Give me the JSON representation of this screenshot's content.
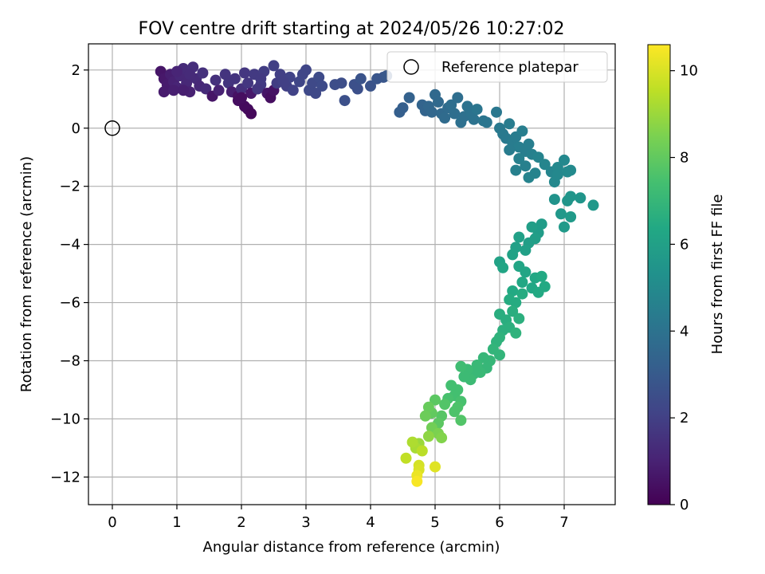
{
  "chart_data": {
    "type": "scatter",
    "title": "FOV centre drift starting at 2024/05/26 10:27:02",
    "xlabel": "Angular distance from reference (arcmin)",
    "ylabel": "Rotation from reference (arcmin)",
    "xlim": [
      -0.37,
      7.79
    ],
    "ylim": [
      -12.95,
      2.9
    ],
    "xticks": [
      0,
      1,
      2,
      3,
      4,
      5,
      6,
      7
    ],
    "yticks": [
      -12,
      -10,
      -8,
      -6,
      -4,
      -2,
      0,
      2
    ],
    "grid": true,
    "legend": {
      "placement": "top-right",
      "entries": [
        "Reference platepar"
      ]
    },
    "reference_point": {
      "x": 0,
      "y": 0
    },
    "colorbar": {
      "label": "Hours from first FF file",
      "colormap": "viridis",
      "range": [
        0,
        10.6
      ],
      "ticks": [
        0,
        2,
        4,
        6,
        8,
        10
      ]
    },
    "series_points": [
      [
        0.75,
        1.95,
        0.6
      ],
      [
        0.8,
        1.7,
        0.7
      ],
      [
        0.85,
        1.5,
        0.8
      ],
      [
        0.9,
        1.85,
        0.9
      ],
      [
        0.8,
        1.25,
        0.8
      ],
      [
        0.95,
        1.6,
        1.0
      ],
      [
        1.0,
        1.4,
        1.1
      ],
      [
        1.05,
        1.8,
        1.2
      ],
      [
        1.1,
        2.05,
        1.3
      ],
      [
        1.15,
        1.55,
        1.2
      ],
      [
        1.2,
        1.25,
        1.0
      ],
      [
        1.25,
        2.1,
        1.4
      ],
      [
        1.3,
        1.7,
        1.3
      ],
      [
        1.35,
        1.45,
        1.2
      ],
      [
        1.0,
        1.95,
        1.1
      ],
      [
        1.1,
        1.3,
        0.9
      ],
      [
        1.2,
        1.85,
        1.3
      ],
      [
        0.95,
        1.3,
        0.9
      ],
      [
        1.4,
        1.9,
        1.5
      ],
      [
        1.45,
        1.35,
        1.3
      ],
      [
        1.55,
        1.1,
        0.6
      ],
      [
        1.6,
        1.65,
        1.5
      ],
      [
        1.65,
        1.3,
        1.0
      ],
      [
        1.75,
        1.85,
        1.6
      ],
      [
        1.8,
        1.55,
        1.6
      ],
      [
        1.85,
        1.25,
        0.9
      ],
      [
        1.9,
        1.7,
        1.6
      ],
      [
        1.95,
        1.1,
        0.5
      ],
      [
        2.0,
        1.35,
        1.5
      ],
      [
        2.05,
        1.9,
        1.7
      ],
      [
        2.1,
        1.55,
        1.7
      ],
      [
        2.15,
        1.2,
        0.7
      ],
      [
        1.95,
        0.95,
        0.4
      ],
      [
        2.05,
        0.75,
        0.3
      ],
      [
        2.1,
        0.65,
        0.3
      ],
      [
        2.15,
        0.5,
        0.2
      ],
      [
        2.0,
        1.05,
        0.4
      ],
      [
        2.2,
        1.85,
        1.8
      ],
      [
        2.3,
        1.5,
        1.8
      ],
      [
        2.35,
        1.95,
        1.9
      ],
      [
        2.4,
        1.2,
        0.6
      ],
      [
        2.45,
        1.05,
        0.4
      ],
      [
        2.5,
        1.3,
        0.5
      ],
      [
        2.55,
        1.55,
        1.9
      ],
      [
        2.6,
        1.85,
        2.0
      ],
      [
        2.5,
        2.15,
        2.0
      ],
      [
        2.7,
        1.45,
        2.0
      ],
      [
        2.75,
        1.75,
        2.1
      ],
      [
        2.8,
        1.3,
        2.1
      ],
      [
        2.9,
        1.6,
        2.2
      ],
      [
        2.95,
        1.85,
        2.2
      ],
      [
        3.05,
        1.3,
        2.3
      ],
      [
        3.1,
        1.55,
        2.3
      ],
      [
        3.2,
        1.75,
        2.4
      ],
      [
        3.25,
        1.45,
        2.4
      ],
      [
        2.3,
        1.7,
        1.8
      ],
      [
        2.25,
        1.35,
        1.7
      ],
      [
        2.65,
        1.6,
        2.0
      ],
      [
        3.0,
        2.0,
        2.2
      ],
      [
        3.15,
        1.2,
        2.3
      ],
      [
        3.45,
        1.5,
        2.5
      ],
      [
        3.55,
        1.55,
        2.5
      ],
      [
        3.6,
        0.95,
        2.6
      ],
      [
        3.75,
        1.5,
        2.6
      ],
      [
        3.8,
        1.35,
        2.6
      ],
      [
        3.85,
        1.7,
        2.7
      ],
      [
        4.0,
        1.45,
        2.7
      ],
      [
        4.1,
        1.7,
        2.8
      ],
      [
        4.2,
        1.75,
        2.8
      ],
      [
        4.25,
        1.8,
        2.9
      ],
      [
        4.45,
        0.55,
        3.2
      ],
      [
        4.5,
        0.7,
        3.2
      ],
      [
        4.6,
        1.05,
        3.3
      ],
      [
        4.8,
        0.8,
        3.4
      ],
      [
        4.85,
        0.6,
        3.4
      ],
      [
        4.9,
        0.75,
        3.5
      ],
      [
        4.95,
        0.55,
        3.5
      ],
      [
        5.0,
        1.15,
        3.6
      ],
      [
        5.05,
        0.9,
        3.6
      ],
      [
        5.1,
        0.5,
        3.6
      ],
      [
        5.15,
        0.35,
        3.7
      ],
      [
        5.2,
        0.7,
        3.7
      ],
      [
        5.25,
        0.8,
        3.8
      ],
      [
        5.3,
        0.5,
        3.8
      ],
      [
        5.35,
        1.05,
        3.8
      ],
      [
        5.4,
        0.2,
        3.9
      ],
      [
        5.45,
        0.4,
        3.9
      ],
      [
        5.5,
        0.75,
        4.0
      ],
      [
        5.55,
        0.55,
        4.0
      ],
      [
        5.6,
        0.3,
        4.0
      ],
      [
        5.65,
        0.65,
        4.1
      ],
      [
        5.75,
        0.25,
        4.1
      ],
      [
        5.8,
        0.2,
        4.1
      ],
      [
        5.95,
        0.55,
        4.2
      ],
      [
        6.0,
        0.0,
        4.3
      ],
      [
        6.05,
        -0.2,
        4.3
      ],
      [
        6.1,
        -0.35,
        4.3
      ],
      [
        6.15,
        0.15,
        4.4
      ],
      [
        6.2,
        -0.5,
        4.4
      ],
      [
        6.25,
        -0.3,
        4.4
      ],
      [
        6.3,
        -0.65,
        4.5
      ],
      [
        6.35,
        -0.1,
        4.5
      ],
      [
        6.4,
        -0.8,
        4.5
      ],
      [
        6.45,
        -0.55,
        4.5
      ],
      [
        6.5,
        -0.9,
        4.6
      ],
      [
        6.3,
        -1.05,
        4.6
      ],
      [
        6.4,
        -1.3,
        4.6
      ],
      [
        6.55,
        -1.55,
        4.7
      ],
      [
        6.25,
        -1.45,
        4.6
      ],
      [
        6.45,
        -1.7,
        4.7
      ],
      [
        6.6,
        -1.0,
        4.7
      ],
      [
        6.7,
        -1.25,
        4.8
      ],
      [
        6.8,
        -1.5,
        4.8
      ],
      [
        6.85,
        -1.85,
        4.9
      ],
      [
        6.9,
        -1.35,
        4.9
      ],
      [
        7.0,
        -1.1,
        4.9
      ],
      [
        7.05,
        -1.5,
        5.0
      ],
      [
        7.1,
        -1.45,
        5.0
      ],
      [
        6.9,
        -1.6,
        4.9
      ],
      [
        6.15,
        -0.75,
        4.4
      ],
      [
        6.85,
        -2.45,
        5.4
      ],
      [
        7.05,
        -2.5,
        5.5
      ],
      [
        7.1,
        -2.35,
        5.5
      ],
      [
        7.25,
        -2.4,
        5.5
      ],
      [
        7.45,
        -2.65,
        5.6
      ],
      [
        6.95,
        -2.95,
        5.6
      ],
      [
        7.0,
        -3.4,
        5.7
      ],
      [
        7.1,
        -3.05,
        5.7
      ],
      [
        6.65,
        -3.3,
        5.8
      ],
      [
        6.6,
        -3.6,
        5.8
      ],
      [
        6.55,
        -3.8,
        5.9
      ],
      [
        6.5,
        -3.4,
        5.9
      ],
      [
        6.45,
        -3.95,
        5.9
      ],
      [
        6.4,
        -4.2,
        6.0
      ],
      [
        6.3,
        -3.75,
        6.0
      ],
      [
        6.25,
        -4.1,
        6.0
      ],
      [
        6.2,
        -4.35,
        6.1
      ],
      [
        6.0,
        -4.6,
        6.1
      ],
      [
        6.05,
        -4.8,
        6.2
      ],
      [
        6.3,
        -4.75,
        6.2
      ],
      [
        6.4,
        -4.95,
        6.2
      ],
      [
        6.35,
        -5.3,
        6.3
      ],
      [
        6.5,
        -5.5,
        6.3
      ],
      [
        6.55,
        -5.15,
        6.3
      ],
      [
        6.6,
        -5.65,
        6.4
      ],
      [
        6.65,
        -5.1,
        6.4
      ],
      [
        6.7,
        -5.45,
        6.4
      ],
      [
        6.2,
        -5.6,
        6.4
      ],
      [
        6.35,
        -5.7,
        6.5
      ],
      [
        6.25,
        -6.0,
        6.5
      ],
      [
        6.15,
        -5.9,
        6.5
      ],
      [
        6.0,
        -6.4,
        6.6
      ],
      [
        6.1,
        -6.6,
        6.6
      ],
      [
        6.15,
        -6.85,
        6.7
      ],
      [
        6.2,
        -6.3,
        6.6
      ],
      [
        6.3,
        -6.55,
        6.7
      ],
      [
        6.25,
        -7.05,
        6.8
      ],
      [
        6.05,
        -6.95,
        6.7
      ],
      [
        6.0,
        -7.2,
        6.8
      ],
      [
        5.95,
        -7.35,
        6.8
      ],
      [
        5.9,
        -7.6,
        6.9
      ],
      [
        6.0,
        -7.8,
        6.9
      ],
      [
        5.85,
        -8.0,
        7.0
      ],
      [
        5.8,
        -8.25,
        7.0
      ],
      [
        5.75,
        -7.9,
        7.0
      ],
      [
        5.7,
        -8.4,
        7.1
      ],
      [
        5.65,
        -8.15,
        7.1
      ],
      [
        5.6,
        -8.45,
        7.1
      ],
      [
        5.55,
        -8.65,
        7.2
      ],
      [
        5.5,
        -8.3,
        7.2
      ],
      [
        5.45,
        -8.55,
        7.2
      ],
      [
        5.4,
        -8.2,
        7.3
      ],
      [
        5.35,
        -9.0,
        7.4
      ],
      [
        5.3,
        -9.2,
        7.4
      ],
      [
        5.25,
        -8.85,
        7.4
      ],
      [
        5.2,
        -9.3,
        7.5
      ],
      [
        5.4,
        -9.4,
        7.5
      ],
      [
        5.35,
        -9.6,
        7.6
      ],
      [
        5.3,
        -9.75,
        7.6
      ],
      [
        5.4,
        -10.05,
        7.7
      ],
      [
        5.15,
        -9.5,
        7.7
      ],
      [
        5.1,
        -9.9,
        7.8
      ],
      [
        5.05,
        -10.15,
        7.9
      ],
      [
        5.0,
        -9.35,
        7.9
      ],
      [
        4.95,
        -9.8,
        8.0
      ],
      [
        4.9,
        -9.6,
        8.1
      ],
      [
        4.85,
        -9.9,
        8.2
      ],
      [
        4.95,
        -10.3,
        8.3
      ],
      [
        5.05,
        -10.5,
        8.5
      ],
      [
        5.1,
        -10.65,
        8.6
      ],
      [
        4.9,
        -10.6,
        8.8
      ],
      [
        4.75,
        -10.85,
        9.0
      ],
      [
        4.7,
        -11.0,
        9.2
      ],
      [
        4.65,
        -10.8,
        9.3
      ],
      [
        4.8,
        -11.1,
        9.5
      ],
      [
        4.55,
        -11.35,
        9.6
      ],
      [
        4.75,
        -11.6,
        9.9
      ],
      [
        4.75,
        -11.75,
        10.0
      ],
      [
        5.0,
        -11.65,
        10.1
      ],
      [
        4.72,
        -11.95,
        10.3
      ],
      [
        4.72,
        -12.15,
        10.5
      ]
    ]
  }
}
